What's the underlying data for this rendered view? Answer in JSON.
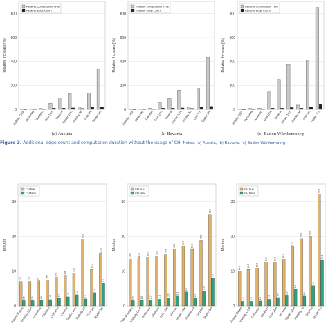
{
  "figure3": {
    "label": "Figure 3.",
    "caption": "Additional edge count and computation duration without the usage of CH.",
    "notes": "Notes: (a) Austria, (b) Bavaria, (c) Baden-Württemberg"
  },
  "colors": {
    "computation_time": "#c8c8c8",
    "edge_count": "#222222",
    "ch_true": "#deb26c",
    "ch_false": "#2aa283",
    "axis": "#555555",
    "grid": "#e3e3e3"
  },
  "chart_data": [
    {
      "type": "bar",
      "panel": "(a) Austria",
      "ylabel": "Relative Increase [%]",
      "ylim": [
        0,
        900
      ],
      "yticks": [
        0,
        200,
        400,
        600,
        800
      ],
      "grid": true,
      "legend": "top-left",
      "categories": [
        "Visibility GCP",
        "Delaunay",
        "Skeleton",
        "Grid 10m",
        "Voronoi",
        "Spider 10m",
        "Visibility All",
        "Grid 5m",
        "Spider 5m"
      ],
      "series": [
        {
          "name": "Relative Computation Time",
          "values": [
            3,
            5,
            8,
            50,
            95,
            130,
            20,
            135,
            335
          ]
        },
        {
          "name": "Relative Edge Count",
          "values": [
            1,
            2,
            3,
            10,
            10,
            12,
            8,
            18,
            22
          ]
        }
      ]
    },
    {
      "type": "bar",
      "panel": "(b) Bavaria",
      "ylabel": "Relative Increase [%]",
      "ylim": [
        0,
        900
      ],
      "yticks": [
        0,
        200,
        400,
        600,
        800
      ],
      "grid": true,
      "legend": "top-left",
      "categories": [
        "Visibility GCP",
        "Delaunay",
        "Skeleton",
        "Grid 10m",
        "Voronoi",
        "Spider 10m",
        "Visibility All",
        "Grid 5m",
        "Spider 5m"
      ],
      "series": [
        {
          "name": "Relative Computation Time",
          "values": [
            3,
            5,
            10,
            55,
            90,
            160,
            20,
            175,
            430
          ]
        },
        {
          "name": "Relative Edge Count",
          "values": [
            1,
            2,
            3,
            10,
            10,
            12,
            8,
            18,
            25
          ]
        }
      ]
    },
    {
      "type": "bar",
      "panel": "(c) Baden-Württemberg",
      "ylabel": "Relative Increase [%]",
      "ylim": [
        0,
        900
      ],
      "yticks": [
        0,
        200,
        400,
        600,
        800
      ],
      "grid": true,
      "legend": "top-left",
      "categories": [
        "Visibility GCP",
        "Delaunay",
        "Skeleton",
        "Grid 10m",
        "Voronoi",
        "Spider 10m",
        "Visibility All",
        "Grid 5m",
        "Spider 5m"
      ],
      "series": [
        {
          "name": "Relative Computation Time",
          "values": [
            3,
            8,
            10,
            145,
            250,
            375,
            35,
            405,
            850
          ]
        },
        {
          "name": "Relative Edge Count",
          "values": [
            1,
            2,
            3,
            10,
            10,
            15,
            10,
            20,
            40
          ]
        }
      ]
    },
    {
      "type": "bar",
      "ylabel": "Minutes",
      "ylim": [
        0,
        35
      ],
      "yticks": [
        0,
        10,
        20,
        30
      ],
      "grid": true,
      "legend": "top-left",
      "categories": [
        "Extend Edges",
        "Visibility GCP",
        "Delaunay",
        "Skeleton",
        "Grid 10m",
        "Voronoi",
        "Spider 10m",
        "Visibility All",
        "Grid 5m",
        "Spider 5m"
      ],
      "series": [
        {
          "name": "CH true",
          "values": [
            7.0,
            7.0,
            7.2,
            7.5,
            8.2,
            8.8,
            9.5,
            19.2,
            10.5,
            15.0
          ]
        },
        {
          "name": "CH false",
          "values": [
            1.5,
            1.5,
            1.6,
            1.8,
            2.2,
            2.6,
            3.2,
            2.0,
            3.8,
            6.5
          ]
        }
      ]
    },
    {
      "type": "bar",
      "ylabel": "Minutes",
      "ylim": [
        0,
        35
      ],
      "yticks": [
        0,
        10,
        20,
        30
      ],
      "grid": true,
      "legend": "top-left",
      "categories": [
        "Extend Edges",
        "Visibility GCP",
        "Delaunay",
        "Skeleton",
        "Grid 10m",
        "Voronoi",
        "Spider 10m",
        "Visibility All",
        "Grid 5m",
        "Spider 5m"
      ],
      "series": [
        {
          "name": "CH true",
          "values": [
            13.5,
            13.8,
            14.0,
            14.2,
            14.8,
            16.2,
            17.2,
            16.3,
            18.8,
            26.3
          ]
        },
        {
          "name": "CH false",
          "values": [
            1.5,
            1.6,
            1.7,
            1.9,
            2.3,
            2.8,
            4.0,
            2.2,
            4.3,
            7.9
          ]
        }
      ]
    },
    {
      "type": "bar",
      "ylabel": "Minutes",
      "ylim": [
        0,
        35
      ],
      "yticks": [
        0,
        10,
        20,
        30
      ],
      "grid": true,
      "legend": "top-left",
      "categories": [
        "Extend Edges",
        "Visibility GCP",
        "Delaunay",
        "Skeleton",
        "Grid 10m",
        "Voronoi",
        "Spider 10m",
        "Visibility All",
        "Grid 5m",
        "Spider 5m"
      ],
      "series": [
        {
          "name": "CH true",
          "values": [
            10.0,
            10.5,
            10.8,
            12.6,
            12.6,
            13.4,
            17.0,
            19.3,
            20.0,
            32.1
          ]
        },
        {
          "name": "CH false",
          "values": [
            1.3,
            1.3,
            1.4,
            1.9,
            2.4,
            2.9,
            4.8,
            2.8,
            5.8,
            13.1
          ]
        }
      ]
    }
  ]
}
